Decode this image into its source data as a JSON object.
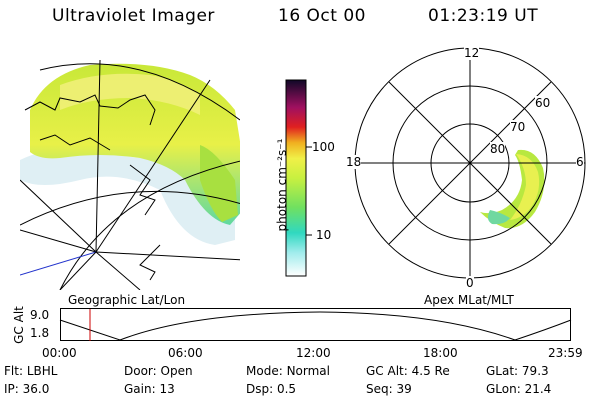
{
  "header": {
    "title": "Ultraviolet Imager",
    "date": "16 Oct 00",
    "time": "01:23:19 UT"
  },
  "geo_panel": {
    "label": "Geographic Lat/Lon"
  },
  "colorbar": {
    "unit_label": "photon cm⁻²s⁻¹",
    "ticks": [
      "100",
      "10"
    ],
    "scale": "log"
  },
  "polar_panel": {
    "label": "Apex MLat/MLT",
    "mlt_labels": {
      "top": "12",
      "left": "18",
      "right": "6",
      "bottom": "0"
    },
    "lat_labels": [
      "60",
      "70",
      "80"
    ]
  },
  "altitude_strip": {
    "ylabel": "GC Alt",
    "yticks": [
      "9.0",
      "1.8"
    ],
    "xticks": [
      "00:00",
      "06:00",
      "12:00",
      "18:00",
      "23:59"
    ]
  },
  "info": {
    "row1": [
      {
        "label": "Flt:",
        "value": "LBHL"
      },
      {
        "label": "Door:",
        "value": "Open"
      },
      {
        "label": "Mode:",
        "value": "Normal"
      },
      {
        "label": "GC Alt:",
        "value": "4.5 Re"
      },
      {
        "label": "GLat:",
        "value": "79.3"
      }
    ],
    "row2": [
      {
        "label": "IP:",
        "value": "36.0"
      },
      {
        "label": "Gain:",
        "value": "13"
      },
      {
        "label": "Dsp:",
        "value": "0.5"
      },
      {
        "label": "Seq:",
        "value": "39"
      },
      {
        "label": "GLon:",
        "value": "21.4"
      }
    ]
  },
  "colors": {
    "marker": "#cc0000",
    "lon_line": "#2233cc"
  }
}
